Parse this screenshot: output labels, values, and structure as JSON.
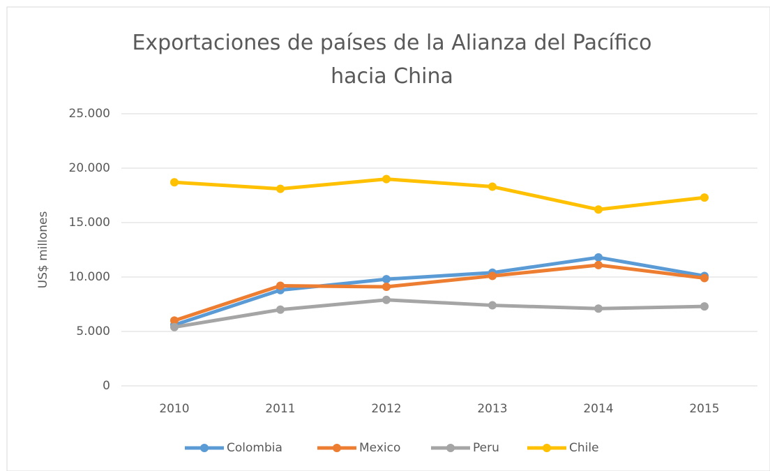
{
  "chart_data": {
    "type": "line",
    "title": "Exportaciones de países de la Alianza del Pacífico hacia China",
    "y_label": "US$ millones",
    "categories": [
      "2010",
      "2011",
      "2012",
      "2013",
      "2014",
      "2015"
    ],
    "series": [
      {
        "name": "Colombia",
        "color": "#5b9bd5",
        "values": [
          5600,
          8800,
          9800,
          10400,
          11800,
          10100
        ]
      },
      {
        "name": "Mexico",
        "color": "#ed7d31",
        "values": [
          6000,
          9200,
          9100,
          10100,
          11100,
          9900
        ]
      },
      {
        "name": "Peru",
        "color": "#a5a5a5",
        "values": [
          5400,
          7000,
          7900,
          7400,
          7100,
          7300
        ]
      },
      {
        "name": "Chile",
        "color": "#ffc000",
        "values": [
          18700,
          18100,
          19000,
          18300,
          16200,
          17300
        ]
      }
    ],
    "ylim": [
      0,
      25000
    ],
    "yticks": [
      0,
      {
        "value": 5000,
        "label": "5.000"
      },
      {
        "value": 10000,
        "label": "10.000"
      },
      {
        "value": 15000,
        "label": "15.000"
      },
      {
        "value": 20000,
        "label": "20.000"
      },
      {
        "value": 25000,
        "label": "25.000"
      }
    ],
    "grid": true,
    "legend": "bottom"
  }
}
